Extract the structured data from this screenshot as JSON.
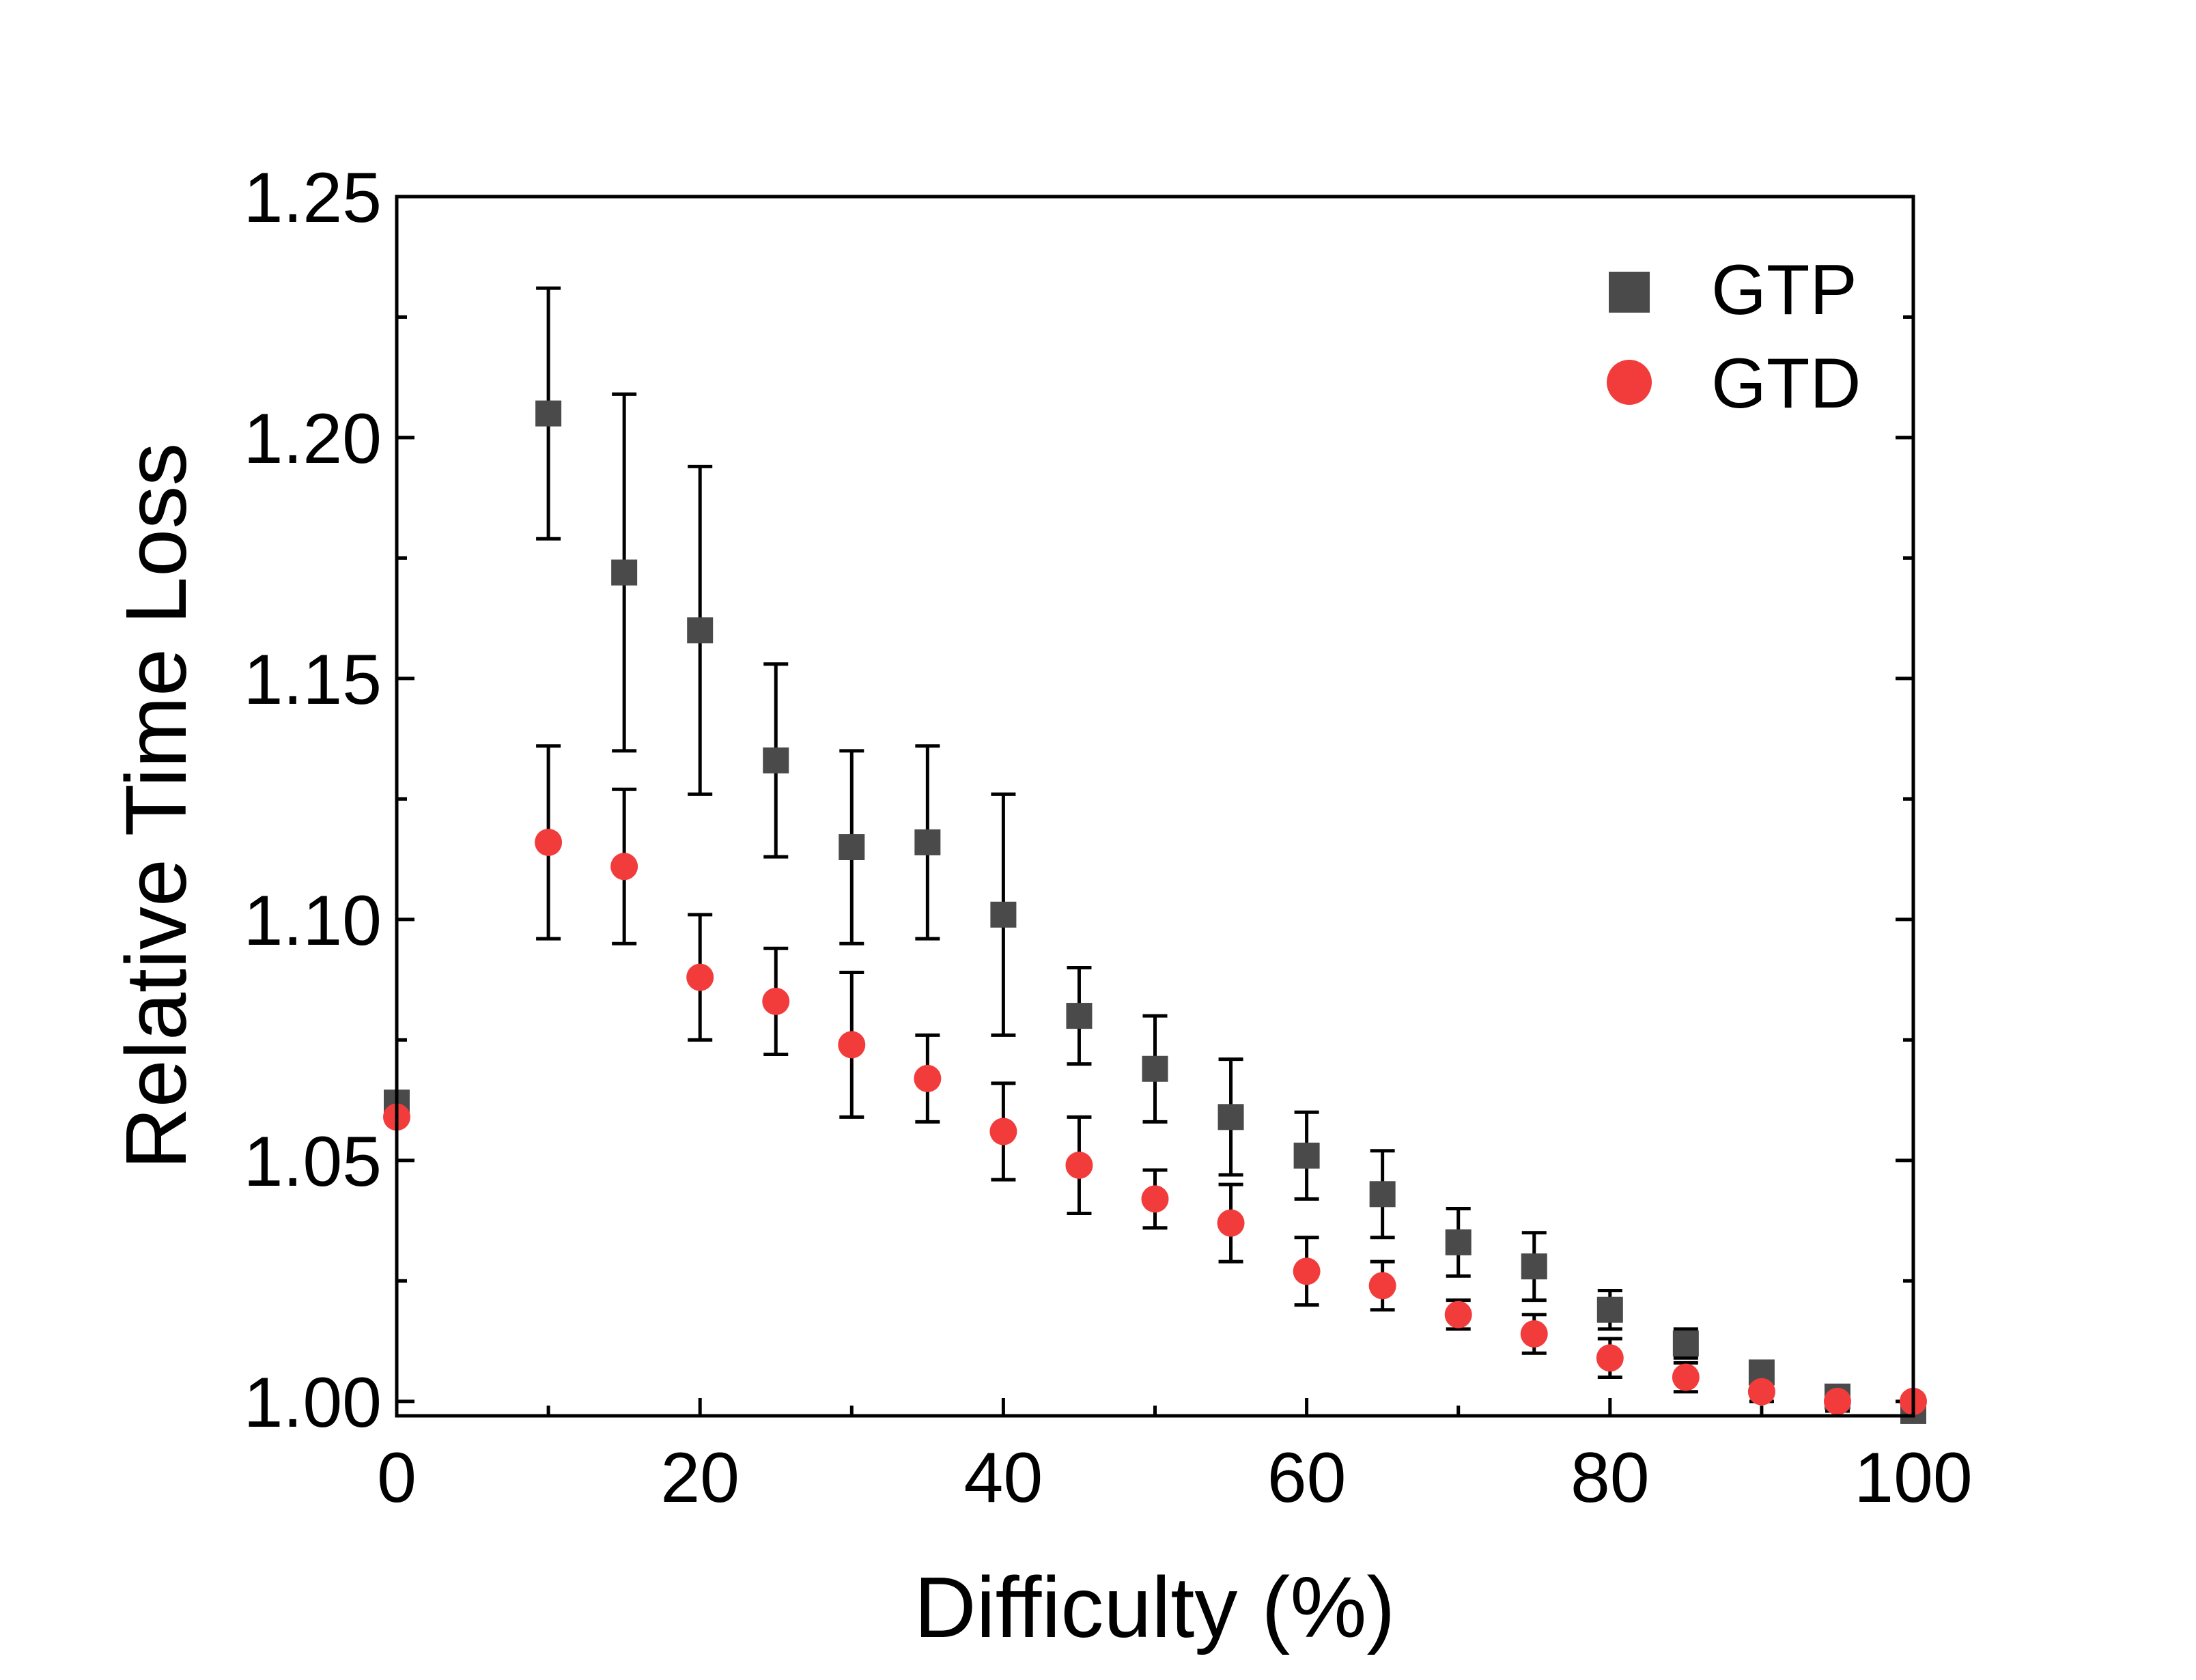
{
  "chart_data": {
    "type": "scatter",
    "title": "",
    "xlabel": "Difficulty (%)",
    "ylabel": "Relative Time Loss",
    "xlim": [
      0,
      100
    ],
    "ylim": [
      0.997,
      1.25
    ],
    "x_ticks": [
      0,
      20,
      40,
      60,
      80,
      100
    ],
    "y_ticks": [
      1.0,
      1.05,
      1.1,
      1.15,
      1.2,
      1.25
    ],
    "x_tick_labels": [
      "0",
      "20",
      "40",
      "60",
      "80",
      "100"
    ],
    "y_tick_labels": [
      "1.00",
      "1.05",
      "1.10",
      "1.15",
      "1.20",
      "1.25"
    ],
    "grid": false,
    "legend_position": "top-right",
    "error_bars": true,
    "series": [
      {
        "name": "GTP",
        "marker": "square",
        "color": "#4a4a4a",
        "x": [
          0,
          10,
          15,
          20,
          25,
          30,
          35,
          40,
          45,
          50,
          55,
          60,
          65,
          70,
          75,
          80,
          85,
          90,
          95,
          100
        ],
        "y": [
          1.062,
          1.205,
          1.172,
          1.16,
          1.133,
          1.115,
          1.116,
          1.101,
          1.08,
          1.069,
          1.059,
          1.051,
          1.043,
          1.033,
          1.028,
          1.019,
          1.012,
          1.006,
          1.001,
          0.998
        ],
        "error": [
          0.0,
          0.026,
          0.037,
          0.034,
          0.02,
          0.02,
          0.02,
          0.025,
          0.01,
          0.011,
          0.012,
          0.009,
          0.009,
          0.007,
          0.007,
          0.004,
          0.003,
          0.002,
          0.002,
          0.001
        ]
      },
      {
        "name": "GTD",
        "marker": "circle",
        "color": "#f23c3c",
        "x": [
          0,
          10,
          15,
          20,
          25,
          30,
          35,
          40,
          45,
          50,
          55,
          60,
          65,
          70,
          75,
          80,
          85,
          90,
          95,
          100
        ],
        "y": [
          1.059,
          1.116,
          1.111,
          1.088,
          1.083,
          1.074,
          1.067,
          1.056,
          1.049,
          1.042,
          1.037,
          1.027,
          1.024,
          1.018,
          1.014,
          1.009,
          1.005,
          1.002,
          1.0,
          1.0
        ],
        "error": [
          0.0,
          0.02,
          0.016,
          0.013,
          0.011,
          0.015,
          0.009,
          0.01,
          0.01,
          0.006,
          0.008,
          0.007,
          0.005,
          0.003,
          0.004,
          0.004,
          0.003,
          0.002,
          0.002,
          0.001
        ]
      }
    ]
  }
}
